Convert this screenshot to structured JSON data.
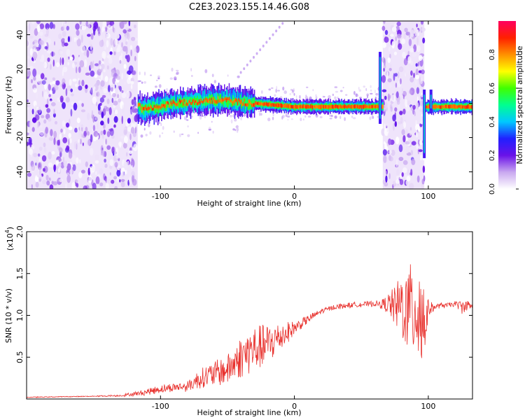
{
  "title": "C2E3.2023.155.14.46.G08",
  "colors": {
    "snr_line": "#e8312d",
    "frame": "#000000"
  },
  "chart_data": [
    {
      "type": "heatmap",
      "title": "C2E3.2023.155.14.46.G08",
      "xlabel": "Height of straight line (km)",
      "ylabel": "Frequency (Hz)",
      "xlim": [
        -200,
        133
      ],
      "ylim": [
        -50,
        48
      ],
      "xticks": [
        -100,
        0,
        100
      ],
      "yticks": [
        -40,
        -20,
        0,
        20,
        40
      ],
      "colorbar": {
        "label": "Normalized spectral amplitude",
        "range": [
          0.0,
          1.0
        ],
        "ticks": [
          "0.0",
          "0.2",
          "0.4",
          "0.6",
          "0.8"
        ],
        "colormap": [
          "#ffffff",
          "#c9a8f0",
          "#6a12e8",
          "#2020ff",
          "#00c8ff",
          "#00ff90",
          "#40ff00",
          "#ffff00",
          "#ff9000",
          "#ff2000",
          "#ff0060"
        ]
      },
      "regions": [
        {
          "name": "noise-left",
          "x": [
            -200,
            -117
          ],
          "y": [
            -50,
            48
          ],
          "level": 0.15
        },
        {
          "name": "noise-mid",
          "x": [
            66,
            97
          ],
          "y": [
            -50,
            48
          ],
          "level": 0.15
        },
        {
          "name": "signal-band",
          "x": [
            -117,
            133
          ],
          "y_center": 0,
          "level": 0.9
        }
      ],
      "ridge": [
        {
          "x": -115,
          "y": -4
        },
        {
          "x": -90,
          "y": 0
        },
        {
          "x": -60,
          "y": 2
        },
        {
          "x": -30,
          "y": 0
        },
        {
          "x": 0,
          "y": -2
        },
        {
          "x": 30,
          "y": -2
        },
        {
          "x": 60,
          "y": -2
        },
        {
          "x": 100,
          "y": -2
        },
        {
          "x": 133,
          "y": -2
        }
      ]
    },
    {
      "type": "line",
      "xlabel": "Height of straight line (km)",
      "ylabel": "SNR (10 * v/v)",
      "y_multiplier": "(x10",
      "y_multiplier_exp": "4",
      "y_multiplier_close": ")",
      "xlim": [
        -200,
        133
      ],
      "ylim": [
        0,
        2.0
      ],
      "xticks": [
        -100,
        0,
        100
      ],
      "yticks": [
        "0.5",
        "1.0",
        "1.5",
        "2.0"
      ],
      "ytick_values": [
        0.5,
        1.0,
        1.5,
        2.0
      ],
      "series": [
        {
          "x": [
            -200,
            -160,
            -130,
            -115,
            -100,
            -90,
            -80,
            -70,
            -60,
            -50,
            -40,
            -30,
            -20,
            -10,
            0,
            10,
            20,
            30,
            40,
            50,
            60,
            65,
            70,
            75,
            80,
            85,
            90,
            93,
            95,
            97,
            100,
            105,
            110,
            115,
            120,
            125,
            130,
            133
          ],
          "y": [
            0.02,
            0.03,
            0.04,
            0.07,
            0.12,
            0.14,
            0.15,
            0.25,
            0.3,
            0.35,
            0.5,
            0.6,
            0.65,
            0.75,
            0.85,
            0.95,
            1.05,
            1.1,
            1.12,
            1.13,
            1.14,
            1.13,
            1.14,
            1.1,
            1.12,
            1.05,
            1.1,
            1.15,
            1.0,
            0.9,
            1.08,
            1.1,
            1.12,
            1.12,
            1.14,
            1.1,
            1.12,
            1.1
          ],
          "amplitude": [
            0.0,
            0.0,
            0.01,
            0.03,
            0.05,
            0.05,
            0.06,
            0.12,
            0.15,
            0.18,
            0.25,
            0.28,
            0.25,
            0.18,
            0.08,
            0.05,
            0.03,
            0.03,
            0.03,
            0.03,
            0.03,
            0.05,
            0.12,
            0.25,
            0.4,
            0.5,
            0.65,
            0.75,
            0.8,
            0.5,
            0.1,
            0.03,
            0.03,
            0.03,
            0.03,
            0.08,
            0.06,
            0.03
          ]
        }
      ]
    }
  ]
}
